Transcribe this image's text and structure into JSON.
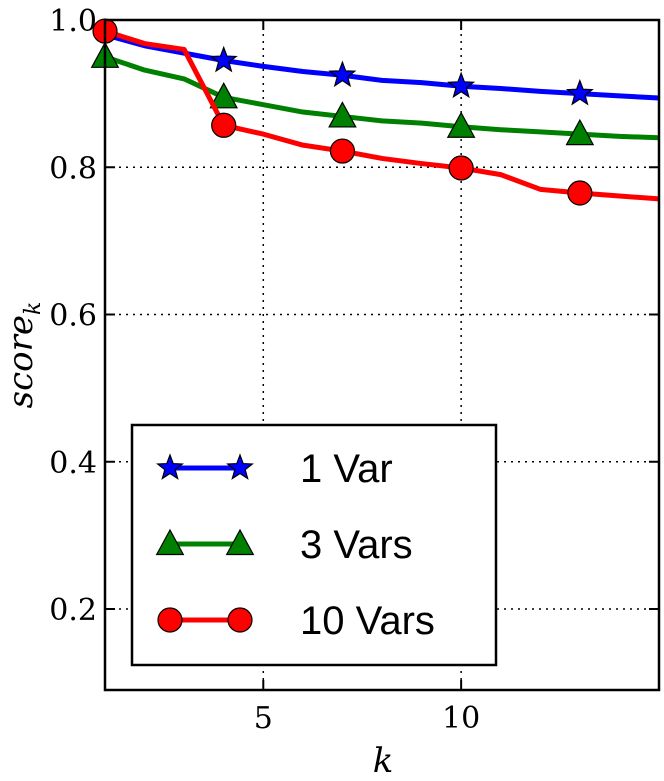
{
  "chart_data": {
    "type": "line",
    "xlabel": "k",
    "ylabel": "score",
    "ylabel_subscript": "k",
    "xlim": [
      1,
      15
    ],
    "ylim": [
      0.09,
      1.0
    ],
    "xticks": [
      5,
      10
    ],
    "xtick_labels": [
      "5",
      "10"
    ],
    "yticks": [
      0.2,
      0.4,
      0.6,
      0.8,
      1.0
    ],
    "ytick_labels": [
      "0.2",
      "0.4",
      "0.6",
      "0.8",
      "1.0"
    ],
    "grid": true,
    "legend_position": "lower-left",
    "series": [
      {
        "name": "1 Var",
        "color": "#0000ff",
        "marker": "star",
        "marker_color": "#0000ff",
        "x": [
          1,
          2,
          3,
          4,
          5,
          6,
          7,
          8,
          9,
          10,
          11,
          12,
          13,
          14,
          15
        ],
        "y": [
          0.98,
          0.965,
          0.955,
          0.945,
          0.937,
          0.93,
          0.925,
          0.918,
          0.915,
          0.91,
          0.907,
          0.903,
          0.9,
          0.897,
          0.894
        ],
        "marker_x": [
          4,
          7,
          10,
          13
        ]
      },
      {
        "name": "3 Vars",
        "color": "#008000",
        "marker": "triangle",
        "marker_color": "#008000",
        "x": [
          1,
          2,
          3,
          4,
          5,
          6,
          7,
          8,
          9,
          10,
          11,
          12,
          13,
          14,
          15
        ],
        "y": [
          0.95,
          0.932,
          0.92,
          0.895,
          0.885,
          0.875,
          0.869,
          0.863,
          0.86,
          0.855,
          0.851,
          0.848,
          0.845,
          0.842,
          0.84
        ],
        "marker_x": [
          1,
          4,
          7,
          10,
          13
        ]
      },
      {
        "name": "10 Vars",
        "color": "#ff0000",
        "marker": "circle",
        "marker_color": "#ff0000",
        "x": [
          1,
          2,
          3,
          4,
          5,
          6,
          7,
          8,
          9,
          10,
          11,
          12,
          13,
          14,
          15
        ],
        "y": [
          0.985,
          0.968,
          0.96,
          0.857,
          0.845,
          0.83,
          0.822,
          0.812,
          0.805,
          0.799,
          0.79,
          0.77,
          0.765,
          0.761,
          0.757
        ],
        "marker_x": [
          1,
          4,
          7,
          10,
          13
        ]
      }
    ]
  }
}
